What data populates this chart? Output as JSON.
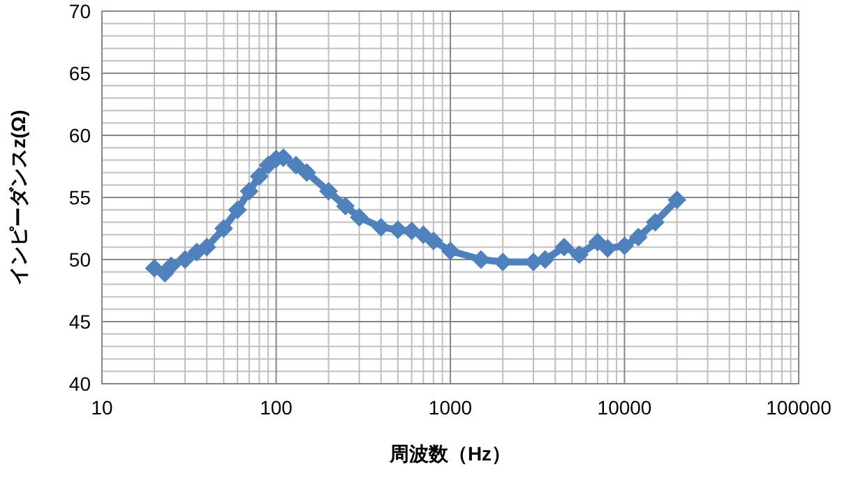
{
  "chart_data": {
    "type": "line",
    "xlabel": "周波数（Hz）",
    "ylabel": "インピーダンスz(Ω)",
    "log": "x",
    "grid": true,
    "marker": "diamond",
    "line_style": "solid",
    "xlim": [
      10,
      100000
    ],
    "xticks": [
      10,
      100,
      1000,
      10000,
      100000
    ],
    "ylim": [
      40,
      70
    ],
    "yticks": [
      40,
      45,
      50,
      55,
      60,
      65,
      70
    ],
    "x": [
      20,
      23,
      25,
      30,
      35,
      40,
      50,
      60,
      70,
      80,
      90,
      100,
      110,
      130,
      150,
      200,
      250,
      300,
      400,
      500,
      600,
      700,
      800,
      1000,
      1500,
      2000,
      3000,
      3500,
      4500,
      5500,
      7000,
      8000,
      10000,
      12000,
      15000,
      20000
    ],
    "series": [
      {
        "color": "#4f81bd",
        "values": [
          49.3,
          48.9,
          49.5,
          50.0,
          50.6,
          51.0,
          52.5,
          54.0,
          55.5,
          56.7,
          57.6,
          58.1,
          58.2,
          57.6,
          57.0,
          55.5,
          54.3,
          53.4,
          52.6,
          52.4,
          52.3,
          52.0,
          51.5,
          50.7,
          50.0,
          49.8,
          49.8,
          50.0,
          51.0,
          50.4,
          51.4,
          50.9,
          51.1,
          51.8,
          53.0,
          54.8
        ]
      }
    ]
  }
}
